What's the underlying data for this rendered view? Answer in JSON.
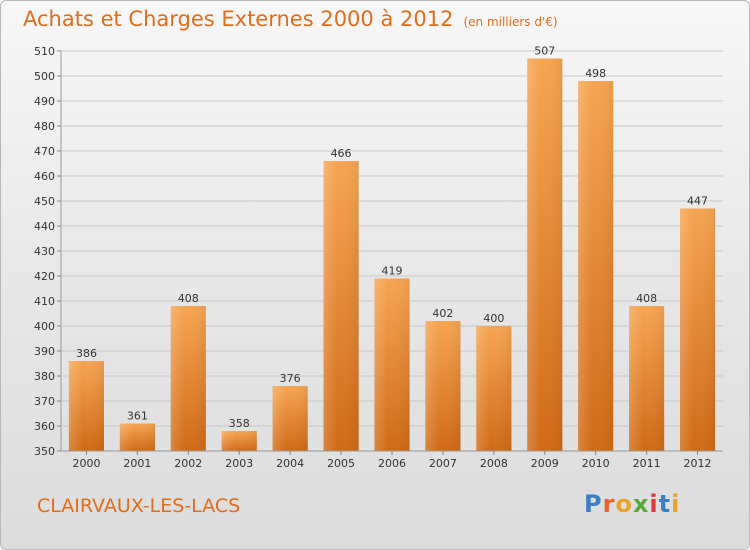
{
  "chart_data": {
    "type": "bar",
    "title": "Achats et Charges Externes 2000 à 2012",
    "unit": "(en milliers d'€)",
    "categories": [
      "2000",
      "2001",
      "2002",
      "2003",
      "2004",
      "2005",
      "2006",
      "2007",
      "2008",
      "2009",
      "2010",
      "2011",
      "2012"
    ],
    "values": [
      386,
      361,
      408,
      358,
      376,
      466,
      419,
      402,
      400,
      507,
      498,
      408,
      447
    ],
    "ylim": [
      350,
      510
    ],
    "yticks": [
      350,
      360,
      370,
      380,
      390,
      400,
      410,
      420,
      430,
      440,
      450,
      460,
      470,
      480,
      490,
      500,
      510
    ],
    "grid": true,
    "bar_color": "#f0892e"
  },
  "footer": {
    "commune": "CLAIRVAUX-LES-LACS",
    "logo_letters": [
      {
        "ch": "P",
        "color": "#3a7fc1"
      },
      {
        "ch": "r",
        "color": "#e8632a"
      },
      {
        "ch": "o",
        "color": "#e8a32a"
      },
      {
        "ch": "x",
        "color": "#5aa83a"
      },
      {
        "ch": "i",
        "color": "#d83a3a"
      },
      {
        "ch": "t",
        "color": "#3a7fc1"
      },
      {
        "ch": "i",
        "color": "#e8a32a"
      }
    ]
  }
}
